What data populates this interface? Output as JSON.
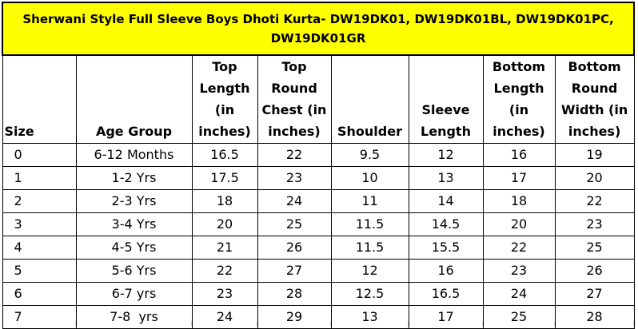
{
  "title": "Sherwani Style Full Sleeve Boys Dhoti Kurta- DW19DK01, DW19DK01BL, DW19DK01PC, DW19DK01GR",
  "columns": [
    "Size",
    "Age Group",
    "Top Length (in inches)",
    "Top Round Chest (in inches)",
    "Shoulder",
    "Sleeve Length",
    "Bottom Length (in inches)",
    "Bottom Round Width (in inches)"
  ],
  "rows": [
    [
      "0",
      "6-12 Months",
      "16.5",
      "22",
      "9.5",
      "12",
      "16",
      "19"
    ],
    [
      "1",
      "1-2 Yrs",
      "17.5",
      "23",
      "10",
      "13",
      "17",
      "20"
    ],
    [
      "2",
      "2-3 Yrs",
      "18",
      "24",
      "11",
      "14",
      "18",
      "22"
    ],
    [
      "3",
      "3-4 Yrs",
      "20",
      "25",
      "11.5",
      "14.5",
      "20",
      "23"
    ],
    [
      "4",
      "4-5 Yrs",
      "21",
      "26",
      "11.5",
      "15.5",
      "22",
      "25"
    ],
    [
      "5",
      "5-6 Yrs",
      "22",
      "27",
      "12",
      "16",
      "23",
      "26"
    ],
    [
      "6",
      "6-7 yrs",
      "23",
      "28",
      "12.5",
      "16.5",
      "24",
      "27"
    ],
    [
      "7",
      "7-8  yrs",
      "24",
      "29",
      "13",
      "17",
      "25",
      "28"
    ]
  ],
  "colors": {
    "title_background": "#ffff00",
    "grid": "#000000"
  }
}
